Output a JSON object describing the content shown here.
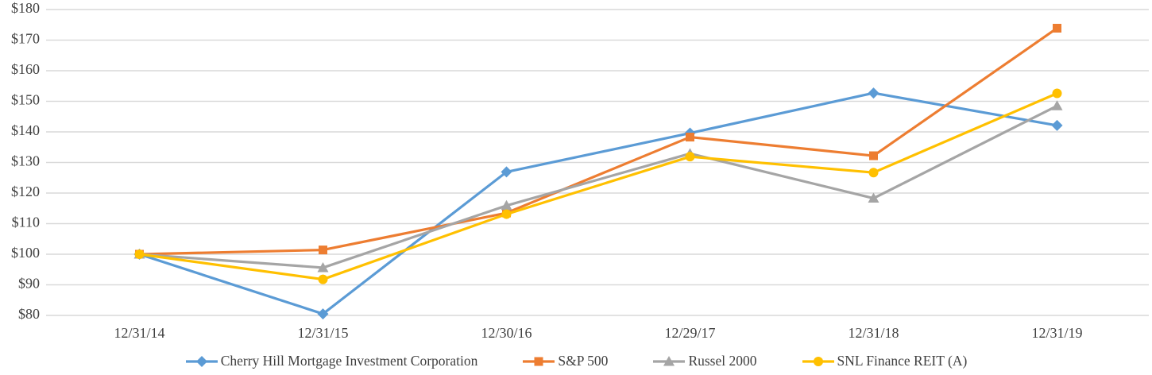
{
  "chart_data": {
    "type": "line",
    "title": "",
    "xlabel": "",
    "ylabel": "",
    "categories": [
      "12/31/14",
      "12/31/15",
      "12/30/16",
      "12/29/17",
      "12/31/18",
      "12/31/19"
    ],
    "series": [
      {
        "name": "Cherry Hill Mortgage Investment Corporation",
        "color": "#5B9BD5",
        "marker": "diamond",
        "values": [
          100,
          80.5,
          126.9,
          139.6,
          152.7,
          142.1
        ]
      },
      {
        "name": "S&P 500",
        "color": "#ED7D31",
        "marker": "square",
        "values": [
          100,
          101.4,
          113.5,
          138.3,
          132.2,
          173.9
        ]
      },
      {
        "name": "Russel 2000",
        "color": "#A5A5A5",
        "marker": "triangle",
        "values": [
          100,
          95.6,
          115.9,
          132.9,
          118.3,
          148.5
        ]
      },
      {
        "name": "SNL Finance REIT (A)",
        "color": "#FFC000",
        "marker": "circle",
        "values": [
          100,
          91.8,
          113.1,
          131.9,
          126.7,
          152.6
        ]
      }
    ],
    "ylim": [
      80,
      180
    ],
    "ytick_step": 10,
    "ytick_labels": [
      "$80",
      "$90",
      "$100",
      "$110",
      "$120",
      "$130",
      "$140",
      "$150",
      "$160",
      "$170",
      "$180"
    ],
    "grid": "horizontal-only",
    "legend_position": "bottom",
    "colors": {
      "gridline": "#D9D9D9",
      "tick_text": "#404040",
      "background": "#ffffff"
    }
  }
}
